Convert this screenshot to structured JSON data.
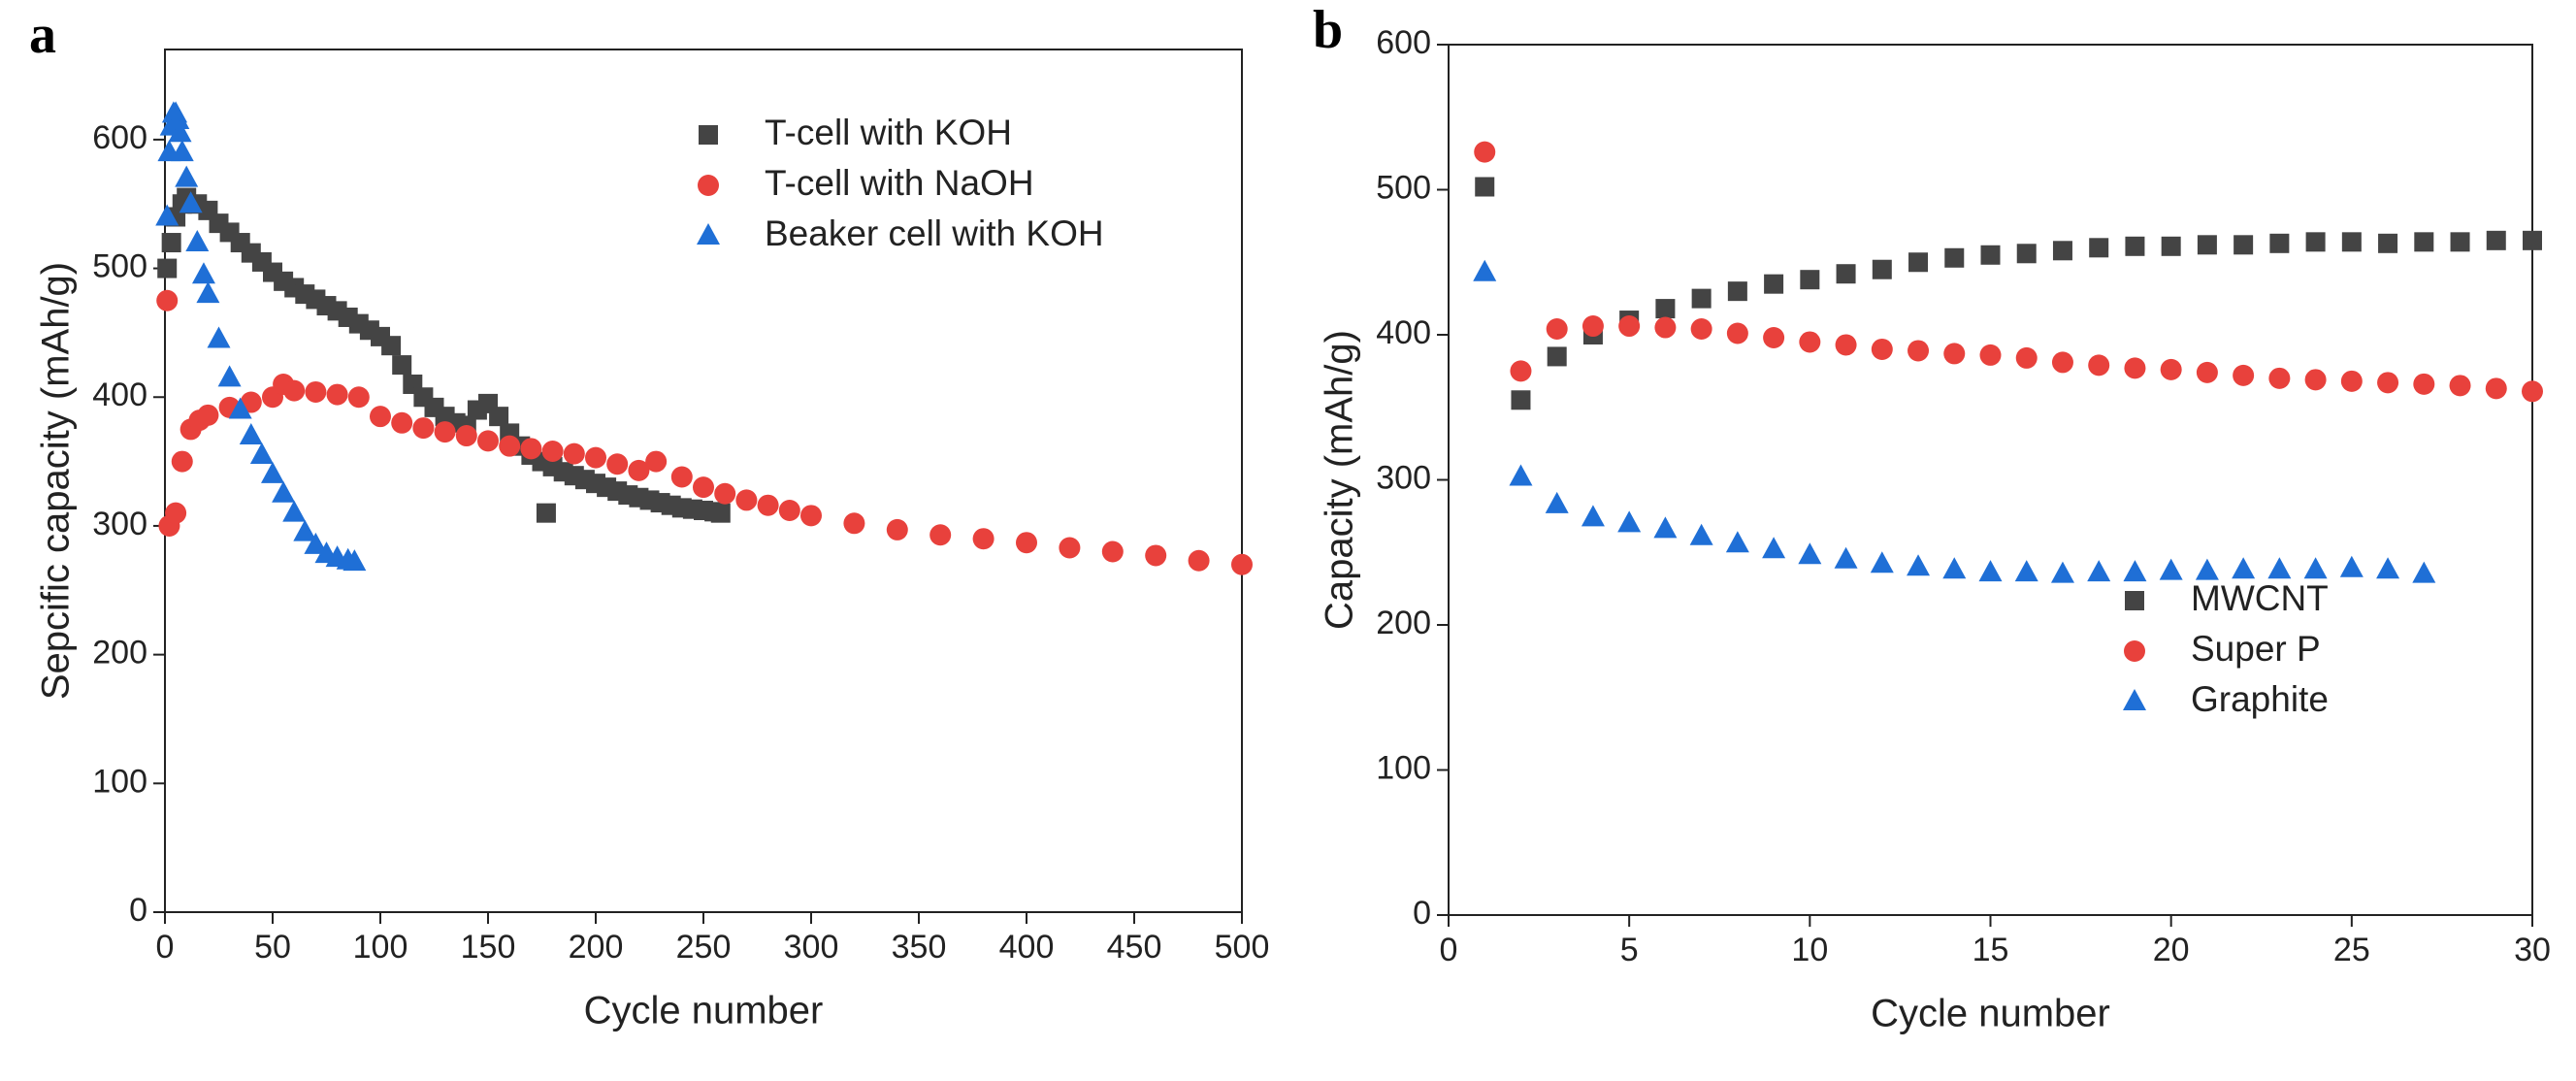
{
  "chart_data": [
    {
      "type": "scatter",
      "panel_label": "a",
      "xlabel": "Cycle number",
      "ylabel": "Sepcific capacity (mAh/g)",
      "xlim": [
        0,
        500
      ],
      "xticks": [
        0,
        50,
        100,
        150,
        200,
        250,
        300,
        350,
        400,
        450,
        500
      ],
      "ylim": [
        0,
        670
      ],
      "yticks": [
        0,
        100,
        200,
        300,
        400,
        500,
        600
      ],
      "legend": "upper right",
      "series": [
        {
          "name": "T-cell with KOH",
          "color": "#444444",
          "marker": "square",
          "x": [
            1,
            3,
            5,
            8,
            10,
            15,
            20,
            25,
            30,
            35,
            40,
            45,
            50,
            55,
            60,
            65,
            70,
            75,
            80,
            85,
            90,
            95,
            100,
            105,
            110,
            115,
            120,
            125,
            130,
            135,
            140,
            145,
            150,
            155,
            160,
            165,
            170,
            175,
            177,
            180,
            185,
            190,
            195,
            200,
            205,
            210,
            215,
            220,
            225,
            230,
            235,
            240,
            245,
            250,
            255,
            258
          ],
          "values": [
            500,
            520,
            540,
            550,
            555,
            550,
            545,
            535,
            528,
            520,
            512,
            505,
            497,
            490,
            485,
            480,
            476,
            471,
            467,
            462,
            457,
            452,
            447,
            440,
            425,
            410,
            400,
            392,
            385,
            380,
            378,
            390,
            395,
            385,
            372,
            362,
            355,
            350,
            310,
            346,
            342,
            339,
            336,
            333,
            330,
            327,
            324,
            322,
            320,
            318,
            316,
            314,
            313,
            312,
            311,
            310
          ]
        },
        {
          "name": "T-cell with NaOH",
          "color": "#e8413c",
          "marker": "circle",
          "x": [
            1,
            2,
            5,
            8,
            12,
            16,
            20,
            30,
            40,
            50,
            55,
            60,
            70,
            80,
            90,
            100,
            110,
            120,
            130,
            140,
            150,
            160,
            170,
            180,
            190,
            200,
            210,
            220,
            228,
            240,
            250,
            260,
            270,
            280,
            290,
            300,
            320,
            340,
            360,
            380,
            400,
            420,
            440,
            460,
            480,
            500
          ],
          "values": [
            475,
            300,
            310,
            350,
            375,
            382,
            386,
            392,
            396,
            400,
            410,
            405,
            404,
            402,
            400,
            385,
            380,
            376,
            373,
            370,
            366,
            362,
            360,
            358,
            356,
            353,
            348,
            343,
            350,
            338,
            330,
            325,
            320,
            316,
            312,
            308,
            302,
            297,
            293,
            290,
            287,
            283,
            280,
            277,
            273,
            270
          ]
        },
        {
          "name": "Beaker cell with KOH",
          "color": "#1f6fd6",
          "marker": "triangle",
          "x": [
            1,
            2,
            3,
            4,
            5,
            6,
            7,
            8,
            10,
            12,
            15,
            18,
            20,
            25,
            30,
            35,
            40,
            45,
            50,
            55,
            60,
            65,
            70,
            75,
            80,
            85,
            88
          ],
          "values": [
            540,
            590,
            610,
            620,
            620,
            615,
            605,
            590,
            570,
            550,
            520,
            495,
            480,
            445,
            415,
            390,
            370,
            355,
            340,
            325,
            310,
            295,
            285,
            278,
            275,
            273,
            272
          ]
        }
      ]
    },
    {
      "type": "scatter",
      "panel_label": "b",
      "xlabel": "Cycle number",
      "ylabel": "Capacity (mAh/g)",
      "xlim": [
        0,
        30
      ],
      "xticks": [
        0,
        5,
        10,
        15,
        20,
        25,
        30
      ],
      "ylim": [
        0,
        600
      ],
      "yticks": [
        0,
        100,
        200,
        300,
        400,
        500,
        600
      ],
      "legend": "lower right",
      "x": [
        1,
        2,
        3,
        4,
        5,
        6,
        7,
        8,
        9,
        10,
        11,
        12,
        13,
        14,
        15,
        16,
        17,
        18,
        19,
        20,
        21,
        22,
        23,
        24,
        25,
        26,
        27,
        28,
        29,
        30
      ],
      "series": [
        {
          "name": "MWCNT",
          "color": "#444444",
          "marker": "square",
          "values": [
            502,
            355,
            385,
            400,
            410,
            418,
            425,
            430,
            435,
            438,
            442,
            445,
            450,
            453,
            455,
            456,
            458,
            460,
            461,
            461,
            462,
            462,
            463,
            464,
            464,
            463,
            464,
            464,
            465,
            465
          ]
        },
        {
          "name": "Super P",
          "color": "#e8413c",
          "marker": "circle",
          "values": [
            526,
            375,
            404,
            406,
            406,
            405,
            404,
            401,
            398,
            395,
            393,
            390,
            389,
            387,
            386,
            384,
            381,
            379,
            377,
            376,
            374,
            372,
            370,
            369,
            368,
            367,
            366,
            365,
            363,
            361
          ]
        },
        {
          "name": "Graphite",
          "color": "#1f6fd6",
          "marker": "triangle",
          "values": [
            443,
            302,
            283,
            274,
            270,
            266,
            261,
            256,
            252,
            248,
            245,
            242,
            240,
            238,
            236,
            236,
            235,
            236,
            236,
            237,
            237,
            238,
            238,
            238,
            239,
            238,
            235,
            null,
            null,
            null
          ]
        }
      ]
    }
  ]
}
